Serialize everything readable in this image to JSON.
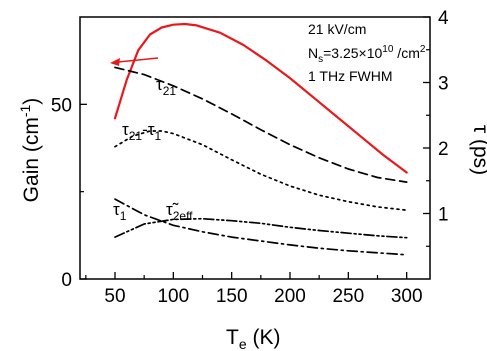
{
  "chart_data": {
    "type": "line",
    "xlabel": "T",
    "xlabel_sub": "e",
    "xlabel_unit": " (K)",
    "ylabel_left_main": "Gain (cm",
    "ylabel_left_sup": "-1",
    "ylabel_left_close": ")",
    "ylabel_right": "τ (ps)",
    "xlim": [
      20,
      320
    ],
    "ylim_left": [
      0,
      75
    ],
    "ylim_right": [
      0,
      4
    ],
    "x_ticks": [
      50,
      100,
      150,
      200,
      250,
      300
    ],
    "y_left_ticks": [
      0,
      50
    ],
    "y_right_ticks": [
      1,
      2,
      3,
      4
    ],
    "annotations": {
      "field": "21 kV/cm",
      "density_prefix": "N",
      "density_sub": "s",
      "density_value": "=3.25×10",
      "density_exp": "10",
      "density_unit": " /cm",
      "density_unit_exp": "2",
      "fwhm": "1 THz FWHM"
    },
    "series": [
      {
        "axis": "left",
        "color": "#e8191c",
        "style": "solid",
        "x": [
          50,
          60,
          70,
          80,
          90,
          100,
          110,
          120,
          140,
          160,
          180,
          200,
          220,
          240,
          260,
          280,
          300
        ],
        "y": [
          46,
          57,
          65.5,
          70,
          72,
          72.8,
          73,
          72.6,
          70.5,
          67,
          62.5,
          57.5,
          52,
          46.5,
          41,
          35.5,
          30.5
        ]
      },
      {
        "axis": "right",
        "label_main": "τ",
        "label_sub": "21",
        "color": "#000000",
        "style": "dashed",
        "x": [
          50,
          75,
          100,
          125,
          150,
          175,
          200,
          225,
          250,
          275,
          300
        ],
        "y": [
          3.23,
          3.12,
          2.95,
          2.75,
          2.52,
          2.28,
          2.05,
          1.85,
          1.68,
          1.55,
          1.48
        ]
      },
      {
        "axis": "right",
        "label_main": "τ",
        "label_sub": "21",
        "label_mid": "-τ",
        "label_sub2": "1",
        "color": "#000000",
        "style": "dotted",
        "x": [
          50,
          65,
          80,
          90,
          100,
          125,
          150,
          175,
          200,
          225,
          250,
          275,
          300
        ],
        "y": [
          2.02,
          2.18,
          2.26,
          2.26,
          2.22,
          2.05,
          1.82,
          1.6,
          1.42,
          1.28,
          1.18,
          1.1,
          1.05
        ]
      },
      {
        "axis": "right",
        "label_main": "τ",
        "label_sub": "1",
        "color": "#000000",
        "style": "dashdot",
        "x": [
          50,
          75,
          100,
          125,
          150,
          175,
          200,
          225,
          250,
          275,
          300
        ],
        "y": [
          1.22,
          0.98,
          0.82,
          0.72,
          0.64,
          0.58,
          0.52,
          0.47,
          0.43,
          0.4,
          0.37
        ]
      },
      {
        "axis": "right",
        "label_main": "τ̃",
        "label_sub": "2eff",
        "color": "#000000",
        "style": "dashdotdot",
        "x": [
          50,
          75,
          100,
          125,
          150,
          175,
          200,
          225,
          250,
          275,
          300
        ],
        "y": [
          0.64,
          0.84,
          0.91,
          0.92,
          0.89,
          0.85,
          0.79,
          0.74,
          0.7,
          0.66,
          0.63
        ]
      }
    ]
  }
}
